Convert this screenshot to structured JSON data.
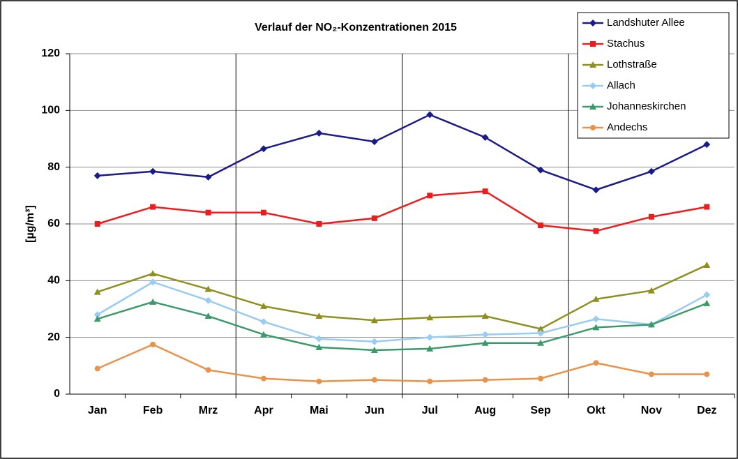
{
  "chart_data": {
    "type": "line",
    "title": "Verlauf der NO₂-Konzentrationen 2015",
    "ylabel": "[µg/m³]",
    "categories": [
      "Jan",
      "Feb",
      "Mrz",
      "Apr",
      "Mai",
      "Jun",
      "Jul",
      "Aug",
      "Sep",
      "Okt",
      "Nov",
      "Dez"
    ],
    "series": [
      {
        "name": "Landshuter Allee",
        "color": "#1a1a8a",
        "marker": "diamond",
        "values": [
          77,
          78.5,
          76.5,
          86.5,
          92,
          89,
          98.5,
          90.5,
          79,
          72,
          78.5,
          88
        ]
      },
      {
        "name": "Stachus",
        "color": "#ee1c1c",
        "marker": "square",
        "values": [
          60,
          66,
          64,
          64,
          60,
          62,
          70,
          71.5,
          59.5,
          57.5,
          62.5,
          66
        ]
      },
      {
        "name": "Lothstraße",
        "color": "#8f8f1f",
        "marker": "triangle",
        "values": [
          36,
          42.5,
          37,
          31,
          27.5,
          26,
          27,
          27.5,
          23,
          33.5,
          36.5,
          45.5
        ]
      },
      {
        "name": "Allach",
        "color": "#99ccf2",
        "marker": "diamond",
        "values": [
          28,
          39.5,
          33,
          25.5,
          19.5,
          18.5,
          20,
          21,
          21.5,
          26.5,
          24.5,
          35
        ]
      },
      {
        "name": "Johanneskirchen",
        "color": "#3a9a6a",
        "marker": "triangle",
        "values": [
          26.5,
          32.5,
          27.5,
          21,
          16.5,
          15.5,
          16,
          18,
          18,
          23.5,
          24.5,
          32
        ]
      },
      {
        "name": "Andechs",
        "color": "#e8924a",
        "marker": "circle",
        "values": [
          9,
          17.5,
          8.5,
          5.5,
          4.5,
          5,
          4.5,
          5,
          5.5,
          11,
          7,
          7
        ]
      }
    ],
    "ylim": [
      0,
      120
    ],
    "yticks": [
      0,
      20,
      40,
      60,
      80,
      100,
      120
    ],
    "grid": true,
    "legend": "upper right"
  }
}
